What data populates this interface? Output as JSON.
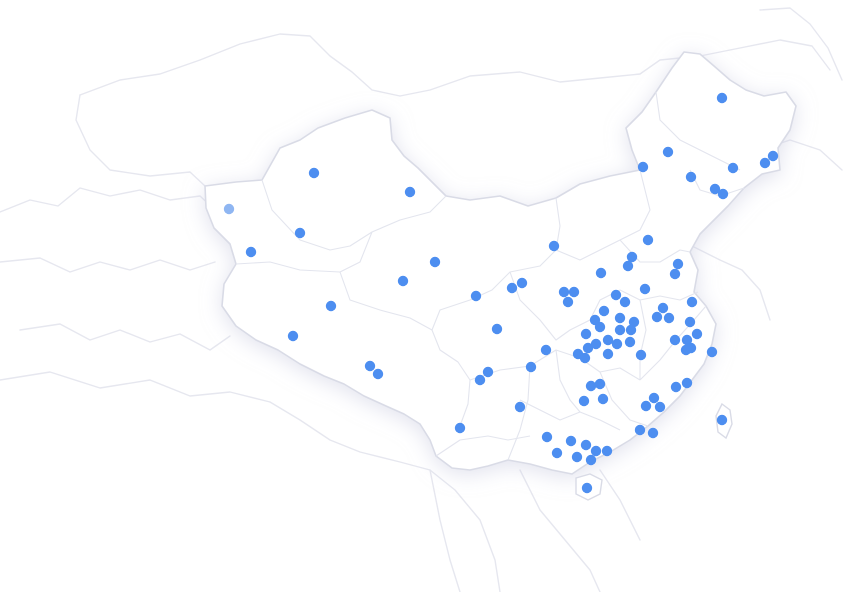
{
  "map": {
    "type": "dot-map",
    "region": "China",
    "marker_color": "#4d8ef0",
    "marker_color_faded": "#8fb6f2",
    "country_fill": "#ffffff",
    "border_color": "#d9dbe6",
    "neighbor_border_color": "#e6e7ef"
  }
}
